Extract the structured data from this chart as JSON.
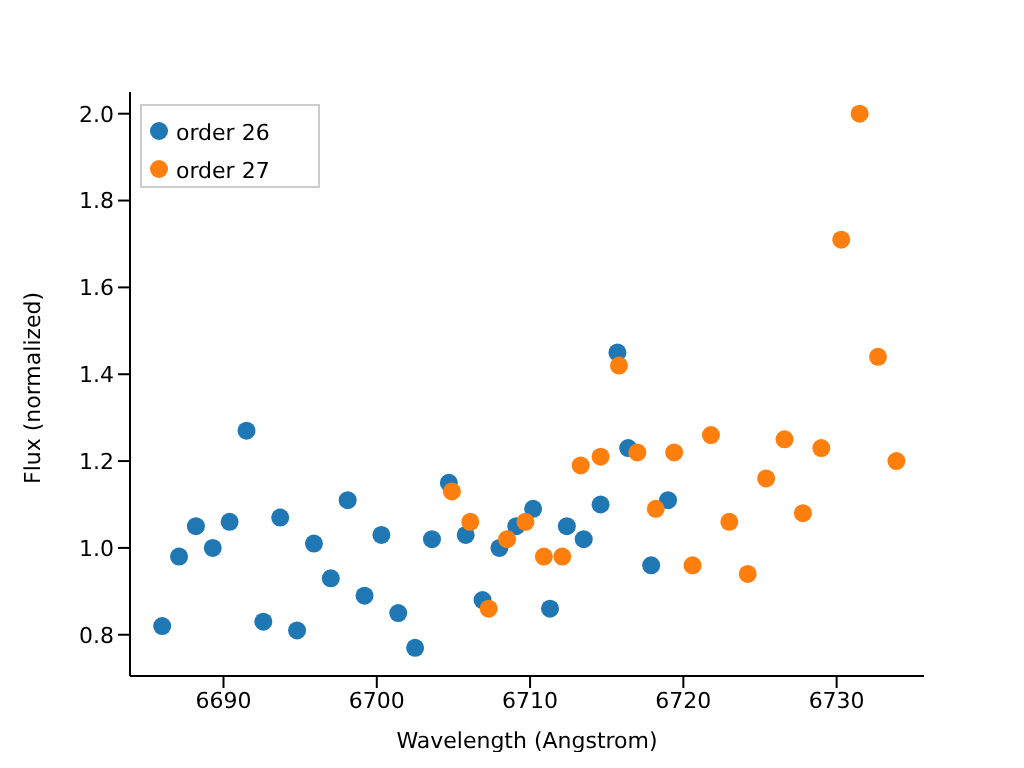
{
  "chart_data": {
    "type": "scatter",
    "xlabel": "Wavelength (Angstrom)",
    "ylabel": "Flux (normalized)",
    "xlim": [
      6683.9,
      6735.7
    ],
    "ylim": [
      0.705,
      2.05
    ],
    "xticks": [
      6690,
      6700,
      6710,
      6720,
      6730
    ],
    "yticks": [
      0.8,
      {
        "value": 1,
        "label": "1.0"
      },
      1.2,
      1.4,
      1.6,
      1.8,
      {
        "value": 2,
        "label": "2.0"
      }
    ],
    "marker": "circle",
    "grid": false,
    "legend": "top left",
    "series": [
      {
        "name": "order 26",
        "color": "#1f77b4",
        "x": [
          6686.0,
          6687.1,
          6688.2,
          6689.3,
          6690.4,
          6691.5,
          6692.6,
          6693.7,
          6694.8,
          6695.9,
          6697.0,
          6698.1,
          6699.2,
          6700.3,
          6701.4,
          6702.5,
          6703.6,
          6704.7,
          6705.8,
          6706.9,
          6708.0,
          6709.1,
          6710.2,
          6711.3,
          6712.4,
          6713.5,
          6714.6,
          6715.7,
          6716.4,
          6717.9,
          6719.0
        ],
        "values": [
          0.82,
          0.98,
          1.05,
          1.0,
          1.06,
          1.27,
          0.83,
          1.07,
          0.81,
          1.01,
          0.93,
          1.11,
          0.89,
          1.03,
          0.85,
          0.77,
          1.02,
          1.15,
          1.03,
          0.88,
          1.0,
          1.05,
          1.09,
          0.86,
          1.05,
          1.02,
          1.1,
          1.45,
          1.23,
          0.96,
          1.11
        ]
      },
      {
        "name": "order 27",
        "color": "#ff7f0e",
        "x": [
          6704.9,
          6706.1,
          6707.3,
          6708.5,
          6709.7,
          6710.9,
          6712.1,
          6713.3,
          6714.6,
          6715.8,
          6717.0,
          6718.2,
          6719.4,
          6720.6,
          6721.8,
          6723.0,
          6724.2,
          6725.4,
          6726.6,
          6727.8,
          6729.0,
          6730.3,
          6731.5,
          6732.7,
          6733.9
        ],
        "values": [
          1.13,
          1.06,
          0.86,
          1.02,
          1.06,
          0.98,
          0.98,
          1.19,
          1.21,
          1.42,
          1.22,
          1.09,
          1.22,
          0.96,
          1.26,
          1.06,
          0.94,
          1.16,
          1.25,
          1.08,
          1.23,
          1.71,
          2.0,
          1.44,
          1.2
        ]
      }
    ]
  }
}
